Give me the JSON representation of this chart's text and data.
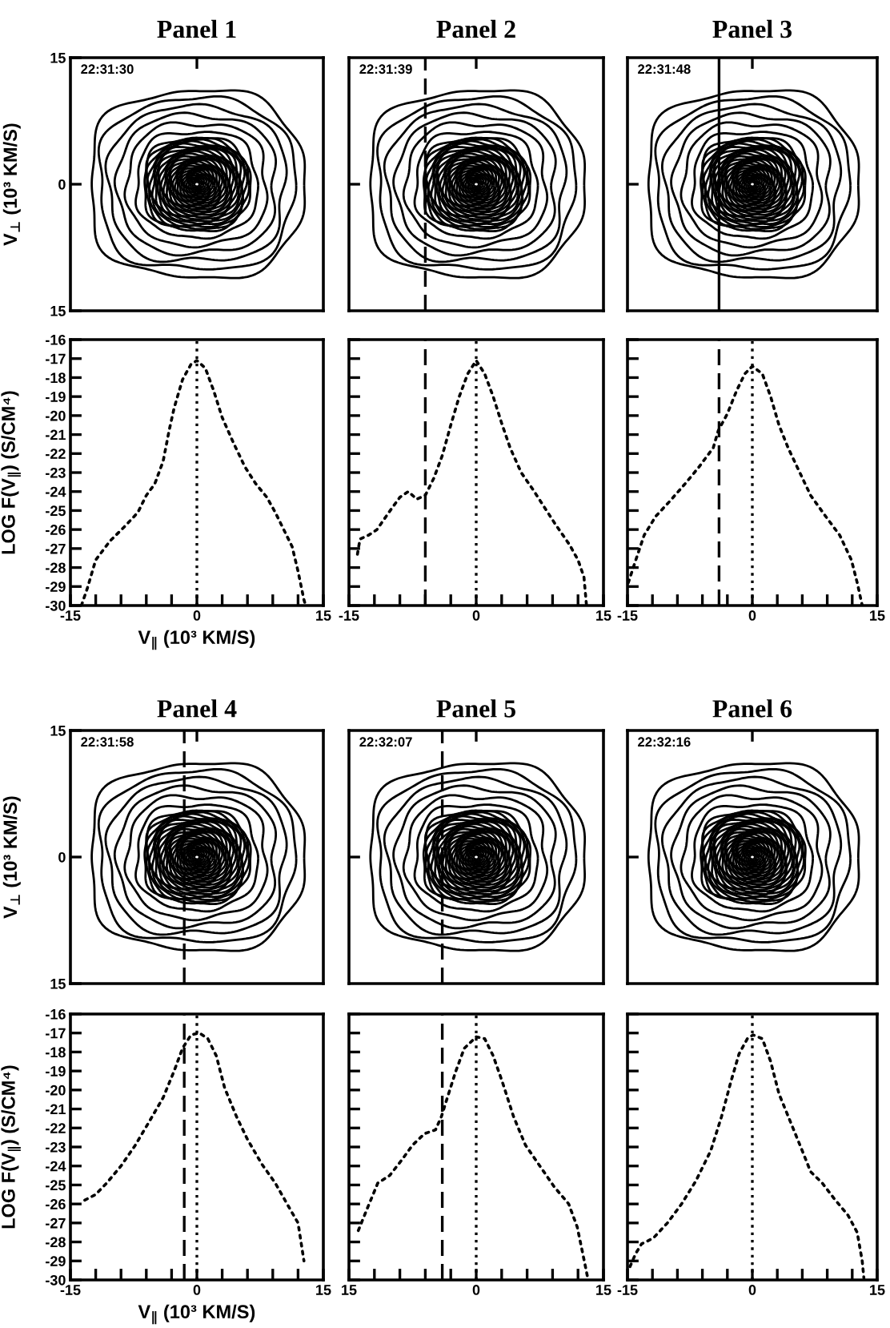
{
  "chart_data": [
    {
      "type": "line",
      "title": "Panel 1",
      "ylabel": "V$_{⊥}$ (10³ KM/S)",
      "annotations": [
        "22:31:30"
      ],
      "xlim": [
        -15,
        15
      ],
      "ylim": [
        -15,
        15
      ],
      "xticks": [
        {
          "value": 0,
          "label": null
        }
      ],
      "yticks": [
        {
          "value": 15,
          "label": "15"
        },
        0,
        {
          "value": -15,
          "label": "15"
        }
      ],
      "tick_labels": "y"
    },
    {
      "type": "line",
      "title": "Panel 2",
      "annotations": [
        "22:31:39"
      ],
      "xlim": [
        -15,
        15
      ],
      "ylim": [
        -15,
        15
      ],
      "xticks": [
        {
          "value": 0,
          "label": null
        }
      ],
      "yticks": [
        {
          "value": 0,
          "label": null
        }
      ],
      "tick_labels": false,
      "ref_lines": [
        {
          "axis": "x",
          "value": -6,
          "line_style": "dashed"
        }
      ]
    },
    {
      "type": "line",
      "title": "Panel 3",
      "annotations": [
        "22:31:48"
      ],
      "xlim": [
        -15,
        15
      ],
      "ylim": [
        -15,
        15
      ],
      "xticks": [
        {
          "value": 0,
          "label": null
        }
      ],
      "yticks": [
        {
          "value": 0,
          "label": null
        }
      ],
      "tick_labels": false,
      "ref_lines": [
        {
          "axis": "x",
          "value": -4,
          "line_style": "solid"
        }
      ]
    },
    {
      "type": "line",
      "xlabel": "V$_{∥}$ (10³ KM/S)",
      "ylabel": "LOG F(V$_{∥}$) (S/CM⁴)",
      "line_style": "dotted",
      "xlim": [
        -15,
        15
      ],
      "ylim": [
        -30,
        -16
      ],
      "xticks": [
        -15,
        {
          "value": -12,
          "label": null
        },
        {
          "value": -9,
          "label": null
        },
        {
          "value": -6,
          "label": null
        },
        {
          "value": -3,
          "label": null
        },
        0,
        {
          "value": 3,
          "label": null
        },
        {
          "value": 6,
          "label": null
        },
        {
          "value": 9,
          "label": null
        },
        {
          "value": 12,
          "label": null
        },
        15
      ],
      "yticks": [
        -30,
        -29,
        -28,
        -27,
        -26,
        -25,
        -24,
        -23,
        -22,
        -21,
        -20,
        -19,
        -18,
        -17,
        -16
      ],
      "ref_lines": [
        {
          "axis": "x",
          "value": 0,
          "line_style": "dotted"
        }
      ],
      "series": [
        {
          "color": "#000000",
          "x": [
            -13.7,
            -13,
            -12,
            -10.3,
            -8.7,
            -7,
            -6,
            -5,
            -4,
            -3.3,
            -2.7,
            -1.7,
            -0.7,
            0,
            1,
            2,
            3,
            4.3,
            5.7,
            7,
            8.3,
            9.3,
            10.3,
            11.3,
            12,
            12.7,
            12.9
          ],
          "values": [
            -30,
            -29.1,
            -27.6,
            -26.6,
            -25.9,
            -25.1,
            -24.2,
            -23.6,
            -22.4,
            -20.8,
            -19.6,
            -18.1,
            -17.3,
            -17.1,
            -17.5,
            -18.7,
            -20.1,
            -21.4,
            -22.7,
            -23.6,
            -24.3,
            -25.1,
            -26,
            -26.9,
            -28.2,
            -29.7,
            -30
          ]
        }
      ]
    },
    {
      "type": "line",
      "line_style": "dotted",
      "xlim": [
        -15,
        15
      ],
      "ylim": [
        -30,
        -16
      ],
      "xticks": [
        -15,
        {
          "value": -12,
          "label": null
        },
        {
          "value": -9,
          "label": null
        },
        {
          "value": -6,
          "label": null
        },
        {
          "value": -3,
          "label": null
        },
        0,
        {
          "value": 3,
          "label": null
        },
        {
          "value": 6,
          "label": null
        },
        {
          "value": 9,
          "label": null
        },
        {
          "value": 12,
          "label": null
        },
        15
      ],
      "yticks": [
        -30,
        -29,
        -28,
        -27,
        -26,
        -25,
        -24,
        -23,
        -22,
        -21,
        -20,
        -19,
        -18,
        -17,
        -16
      ],
      "tick_labels": "x",
      "ref_lines": [
        {
          "axis": "x",
          "value": 0,
          "line_style": "dotted"
        },
        {
          "axis": "x",
          "value": -6,
          "line_style": "dashed"
        }
      ],
      "series": [
        {
          "color": "#000000",
          "x": [
            -14,
            -13.7,
            -12.7,
            -11.7,
            -10.3,
            -9,
            -8,
            -7,
            -6,
            -5,
            -4,
            -3,
            -2,
            -1,
            0,
            1,
            2,
            3,
            4,
            5.3,
            6.7,
            8,
            9.3,
            11,
            12,
            12.7,
            13
          ],
          "values": [
            -27.3,
            -26.5,
            -26.3,
            -26,
            -25.1,
            -24.3,
            -24,
            -24.4,
            -24.2,
            -23.3,
            -22.1,
            -20.5,
            -19,
            -17.8,
            -17.1,
            -17.8,
            -19,
            -20.4,
            -21.7,
            -23,
            -23.9,
            -24.8,
            -25.7,
            -26.8,
            -27.6,
            -28.5,
            -30
          ]
        }
      ]
    },
    {
      "type": "line",
      "line_style": "dotted",
      "xlim": [
        -15,
        15
      ],
      "ylim": [
        -30,
        -16
      ],
      "xticks": [
        -15,
        {
          "value": -12,
          "label": null
        },
        {
          "value": -9,
          "label": null
        },
        {
          "value": -6,
          "label": null
        },
        {
          "value": -3,
          "label": null
        },
        0,
        {
          "value": 3,
          "label": null
        },
        {
          "value": 6,
          "label": null
        },
        {
          "value": 9,
          "label": null
        },
        {
          "value": 12,
          "label": null
        },
        15
      ],
      "yticks": [
        -30,
        -29,
        -28,
        -27,
        -26,
        -25,
        -24,
        -23,
        -22,
        -21,
        -20,
        -19,
        -18,
        -17,
        -16
      ],
      "tick_labels": "x",
      "ref_lines": [
        {
          "axis": "x",
          "value": 0,
          "line_style": "dotted"
        },
        {
          "axis": "x",
          "value": -4,
          "line_style": "dashed"
        }
      ],
      "series": [
        {
          "color": "#000000",
          "x": [
            -14.9,
            -14,
            -13,
            -11.6,
            -9.9,
            -8.1,
            -6.4,
            -4.7,
            -4.1,
            -3,
            -1.9,
            -0.9,
            0,
            1.2,
            2.2,
            3.2,
            4.3,
            5.7,
            7,
            8.8,
            10.5,
            11.9,
            12.6,
            13.2
          ],
          "values": [
            -28.8,
            -27.6,
            -26.3,
            -25.3,
            -24.5,
            -23.6,
            -22.7,
            -21.7,
            -20.8,
            -19.9,
            -18.7,
            -17.8,
            -17.4,
            -17.8,
            -19,
            -20.5,
            -21.7,
            -23,
            -24.2,
            -25.3,
            -26.3,
            -27.6,
            -28.8,
            -30
          ]
        }
      ]
    },
    {
      "type": "line",
      "title": "Panel 4",
      "ylabel": "V$_{⊥}$ (10³ KM/S)",
      "annotations": [
        "22:31:58"
      ],
      "xlim": [
        -15,
        15
      ],
      "ylim": [
        -15,
        15
      ],
      "xticks": [
        {
          "value": 0,
          "label": null
        }
      ],
      "yticks": [
        {
          "value": 15,
          "label": "15"
        },
        0,
        {
          "value": -15,
          "label": "15"
        }
      ],
      "tick_labels": "y",
      "ref_lines": [
        {
          "axis": "x",
          "value": -1.5,
          "line_style": "dashed"
        }
      ]
    },
    {
      "type": "line",
      "title": "Panel 5",
      "annotations": [
        "22:32:07"
      ],
      "xlim": [
        -15,
        15
      ],
      "ylim": [
        -15,
        15
      ],
      "xticks": [
        {
          "value": 0,
          "label": null
        }
      ],
      "yticks": [
        {
          "value": 0,
          "label": null
        }
      ],
      "tick_labels": false,
      "ref_lines": [
        {
          "axis": "x",
          "value": -4,
          "line_style": "dashed"
        }
      ]
    },
    {
      "type": "line",
      "title": "Panel 6",
      "annotations": [
        "22:32:16"
      ],
      "xlim": [
        -15,
        15
      ],
      "ylim": [
        -15,
        15
      ],
      "xticks": [
        {
          "value": 0,
          "label": null
        }
      ],
      "yticks": [
        {
          "value": 0,
          "label": null
        }
      ],
      "tick_labels": false
    },
    {
      "type": "line",
      "xlabel": "V$_{∥}$ (10³ KM/S)",
      "ylabel": "LOG F(V$_{∥}$) (S/CM⁴)",
      "line_style": "dotted",
      "xlim": [
        -15,
        15
      ],
      "ylim": [
        -30,
        -16
      ],
      "xticks": [
        -15,
        {
          "value": -12,
          "label": null
        },
        {
          "value": -9,
          "label": null
        },
        {
          "value": -6,
          "label": null
        },
        {
          "value": -3,
          "label": null
        },
        0,
        {
          "value": 3,
          "label": null
        },
        {
          "value": 6,
          "label": null
        },
        {
          "value": 9,
          "label": null
        },
        {
          "value": 12,
          "label": null
        },
        15
      ],
      "yticks": [
        -30,
        -29,
        -28,
        -27,
        -26,
        -25,
        -24,
        -23,
        -22,
        -21,
        -20,
        -19,
        -18,
        -17,
        -16
      ],
      "ref_lines": [
        {
          "axis": "x",
          "value": 0,
          "line_style": "dotted"
        },
        {
          "axis": "x",
          "value": -1.5,
          "line_style": "dashed"
        }
      ],
      "series": [
        {
          "color": "#000000",
          "x": [
            -13.3,
            -12,
            -10.7,
            -9,
            -7.3,
            -5.7,
            -4,
            -2.7,
            -1.7,
            -0.7,
            0.3,
            1.3,
            2.3,
            3.3,
            4.7,
            6,
            7.7,
            9.3,
            10.7,
            12,
            12.7
          ],
          "values": [
            -25.8,
            -25.5,
            -24.9,
            -24,
            -22.9,
            -21.7,
            -20.4,
            -19,
            -17.8,
            -17.1,
            -17,
            -17.3,
            -18.2,
            -19.9,
            -21.4,
            -22.6,
            -23.9,
            -24.9,
            -26,
            -27,
            -29
          ]
        }
      ]
    },
    {
      "type": "line",
      "line_style": "dotted",
      "xlim": [
        -15,
        15
      ],
      "ylim": [
        -30,
        -16
      ],
      "xticks": [
        {
          "value": -15,
          "label": "15"
        },
        {
          "value": -12,
          "label": null
        },
        {
          "value": -9,
          "label": null
        },
        {
          "value": -6,
          "label": null
        },
        {
          "value": -3,
          "label": null
        },
        0,
        {
          "value": 3,
          "label": null
        },
        {
          "value": 6,
          "label": null
        },
        {
          "value": 9,
          "label": null
        },
        {
          "value": 12,
          "label": null
        },
        15
      ],
      "yticks": [
        -30,
        -29,
        -28,
        -27,
        -26,
        -25,
        -24,
        -23,
        -22,
        -21,
        -20,
        -19,
        -18,
        -17,
        -16
      ],
      "tick_labels": "x",
      "ref_lines": [
        {
          "axis": "x",
          "value": 0,
          "line_style": "dotted"
        },
        {
          "axis": "x",
          "value": -4,
          "line_style": "dashed"
        }
      ],
      "series": [
        {
          "color": "#000000",
          "x": [
            -13.9,
            -12.9,
            -11.6,
            -10.2,
            -8.8,
            -7.5,
            -6.1,
            -4.8,
            -4.1,
            -3.4,
            -2.4,
            -1.4,
            0,
            1,
            2,
            3.1,
            4.4,
            5.8,
            7.5,
            9.2,
            10.9,
            11.9,
            12.6,
            13.1
          ],
          "values": [
            -27.4,
            -26.3,
            -24.9,
            -24.5,
            -23.7,
            -22.9,
            -22.3,
            -22.1,
            -21.4,
            -20.4,
            -19,
            -17.8,
            -17.2,
            -17.3,
            -18.2,
            -19.6,
            -21.4,
            -22.9,
            -24,
            -25.1,
            -26,
            -27.2,
            -28.7,
            -29.8
          ]
        }
      ]
    },
    {
      "type": "line",
      "line_style": "dotted",
      "xlim": [
        -15,
        15
      ],
      "ylim": [
        -30,
        -16
      ],
      "xticks": [
        -15,
        {
          "value": -12,
          "label": null
        },
        {
          "value": -9,
          "label": null
        },
        {
          "value": -6,
          "label": null
        },
        {
          "value": -3,
          "label": null
        },
        0,
        {
          "value": 3,
          "label": null
        },
        {
          "value": 6,
          "label": null
        },
        {
          "value": 9,
          "label": null
        },
        {
          "value": 12,
          "label": null
        },
        15
      ],
      "yticks": [
        -30,
        -29,
        -28,
        -27,
        -26,
        -25,
        -24,
        -23,
        -22,
        -21,
        -20,
        -19,
        -18,
        -17,
        -16
      ],
      "tick_labels": "x",
      "ref_lines": [
        {
          "axis": "x",
          "value": 0,
          "line_style": "dotted"
        }
      ],
      "series": [
        {
          "color": "#000000",
          "x": [
            -14.7,
            -14,
            -13.3,
            -11.9,
            -10.2,
            -8.5,
            -6.8,
            -5,
            -3.7,
            -2.6,
            -1.6,
            -0.6,
            0.1,
            1.2,
            2.2,
            3.2,
            4.6,
            6,
            7,
            8.4,
            9.8,
            11.5,
            12.6,
            13.2,
            13.4
          ],
          "values": [
            -29.3,
            -28.6,
            -28.1,
            -27.8,
            -27,
            -26,
            -24.8,
            -23.2,
            -21.4,
            -19.6,
            -18.1,
            -17.3,
            -17.1,
            -17.3,
            -18.5,
            -20.2,
            -21.7,
            -23.2,
            -24.3,
            -24.9,
            -25.7,
            -26.6,
            -27.5,
            -29,
            -29.9
          ]
        }
      ]
    }
  ]
}
